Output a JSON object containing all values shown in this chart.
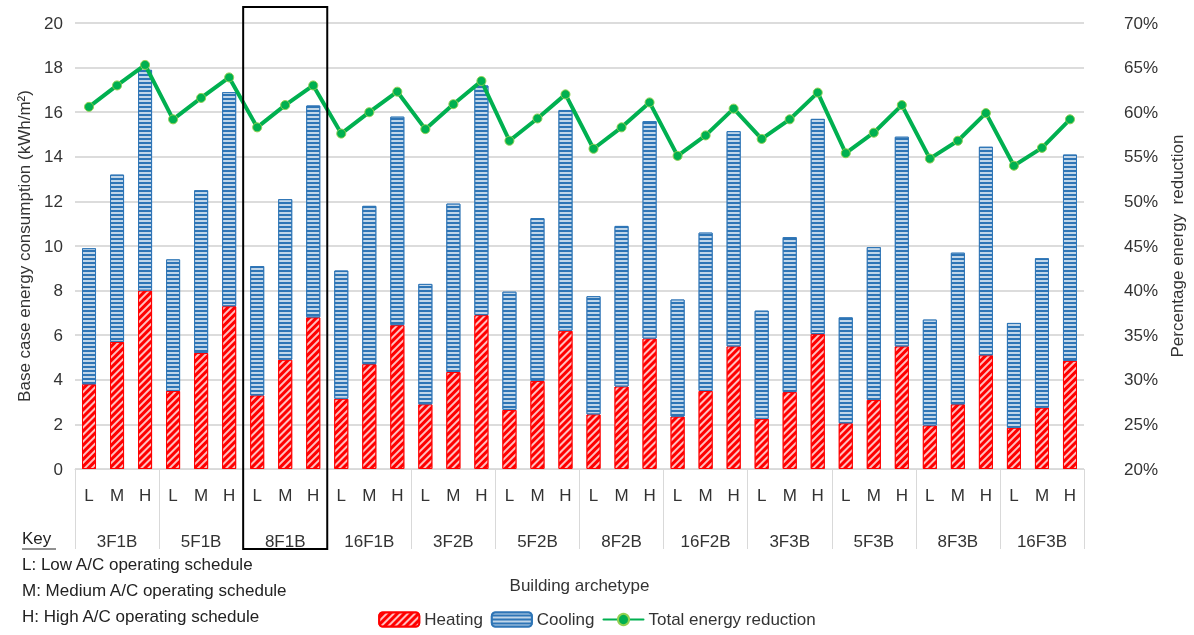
{
  "chart_data": {
    "type": "bar",
    "stacked": true,
    "xlabel": "Building archetype",
    "ylabel": "Base case energy consumption (kWh/m²)",
    "y2label": "Percentage energy  reduction",
    "categories": [
      "L",
      "M",
      "H",
      "L",
      "M",
      "H",
      "L",
      "M",
      "H",
      "L",
      "M",
      "H",
      "L",
      "M",
      "H",
      "L",
      "M",
      "H",
      "L",
      "M",
      "H",
      "L",
      "M",
      "H",
      "L",
      "M",
      "H",
      "L",
      "M",
      "H",
      "L",
      "M",
      "H",
      "L",
      "M",
      "H"
    ],
    "series": [
      {
        "name": "Heating",
        "color": "#ff0000",
        "values": [
          3.8,
          5.7,
          8.0,
          3.5,
          5.2,
          7.3,
          3.3,
          4.9,
          6.8,
          3.15,
          4.7,
          6.45,
          2.9,
          4.35,
          6.9,
          2.65,
          3.95,
          6.2,
          2.45,
          3.7,
          5.85,
          2.35,
          3.5,
          5.5,
          2.25,
          3.45,
          6.05,
          2.05,
          3.1,
          5.5,
          1.95,
          2.9,
          5.1,
          1.85,
          2.75,
          4.85
        ]
      },
      {
        "name": "Cooling",
        "color": "#2e75b6",
        "values": [
          6.1,
          7.5,
          9.9,
          5.9,
          7.3,
          9.6,
          5.8,
          7.2,
          9.5,
          5.75,
          7.1,
          9.35,
          5.4,
          7.55,
          10.3,
          5.3,
          7.3,
          9.9,
          5.3,
          7.2,
          9.75,
          5.25,
          7.1,
          9.65,
          4.85,
          6.95,
          9.65,
          4.75,
          6.85,
          9.4,
          4.75,
          6.8,
          9.35,
          4.7,
          6.7,
          9.25
        ]
      },
      {
        "name": "Total energy reduction",
        "type": "line",
        "axis": "y2",
        "color": "#00b050",
        "marker": "circle",
        "values": [
          60.6,
          63.0,
          65.3,
          59.2,
          61.6,
          63.9,
          58.3,
          60.8,
          63.0,
          57.6,
          60.0,
          62.3,
          58.1,
          60.9,
          63.5,
          56.8,
          59.3,
          62.0,
          55.9,
          58.3,
          61.1,
          55.1,
          57.4,
          60.4,
          57.0,
          59.2,
          62.2,
          55.4,
          57.7,
          60.8,
          54.8,
          56.8,
          59.9,
          54.0,
          56.0,
          59.2
        ]
      }
    ],
    "ylim": [
      0,
      20
    ],
    "yticks": [
      0,
      2,
      4,
      6,
      8,
      10,
      12,
      14,
      16,
      18,
      20
    ],
    "y2lim": [
      20,
      70
    ],
    "y2ticks": [
      {
        "value": 20,
        "label": "20%"
      },
      {
        "value": 25,
        "label": "25%"
      },
      {
        "value": 30,
        "label": "30%"
      },
      {
        "value": 35,
        "label": "35%"
      },
      {
        "value": 40,
        "label": "40%"
      },
      {
        "value": 45,
        "label": "45%"
      },
      {
        "value": 50,
        "label": "50%"
      },
      {
        "value": 55,
        "label": "55%"
      },
      {
        "value": 60,
        "label": "60%"
      },
      {
        "value": 65,
        "label": "65%"
      },
      {
        "value": 70,
        "label": "70%"
      }
    ],
    "grid": "y",
    "legend": "bottom",
    "annotations": [
      "3F1B",
      "5F1B",
      "8F1B",
      "16F1B",
      "3F2B",
      "5F2B",
      "8F2B",
      "16F2B",
      "3F3B",
      "5F3B",
      "8F3B",
      "16F3B",
      "Key",
      "L: Low A/C operating schedule",
      "M: Medium A/C operating schedule",
      "H: High A/C operating schedule"
    ]
  }
}
